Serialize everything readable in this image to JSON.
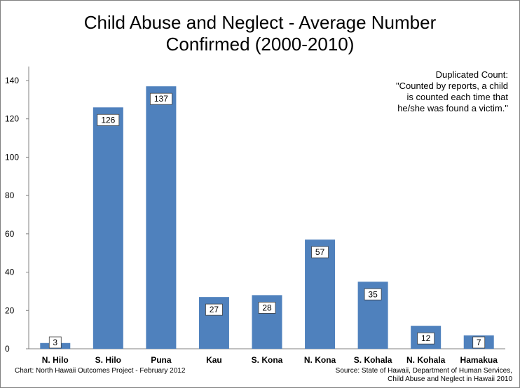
{
  "chart_data": {
    "type": "bar",
    "title_lines": [
      "Child Abuse and Neglect - Average Number",
      "Confirmed  (2000-2010)"
    ],
    "categories": [
      "N. Hilo",
      "S. Hilo",
      "Puna",
      "Kau",
      "S. Kona",
      "N. Kona",
      "S. Kohala",
      "N. Kohala",
      "Hamakua"
    ],
    "values": [
      3,
      126,
      137,
      27,
      28,
      57,
      35,
      12,
      7
    ],
    "ylim": [
      0,
      140
    ],
    "yticks": [
      0,
      20,
      40,
      60,
      80,
      100,
      120,
      140
    ],
    "bar_color": "#4f81bd",
    "grid": false,
    "annotation_lines": [
      "Duplicated Count:",
      "\"Counted by reports, a child",
      "is counted  each time that",
      "he/she was found a victim.\""
    ]
  },
  "footer": {
    "credit": "Chart:  North Hawaii Outcomes Project - February 2012",
    "source_lines": [
      "Source: State of Hawaii, Department of Human Services,",
      "Child Abuse and Neglect in Hawaii 2010"
    ]
  }
}
